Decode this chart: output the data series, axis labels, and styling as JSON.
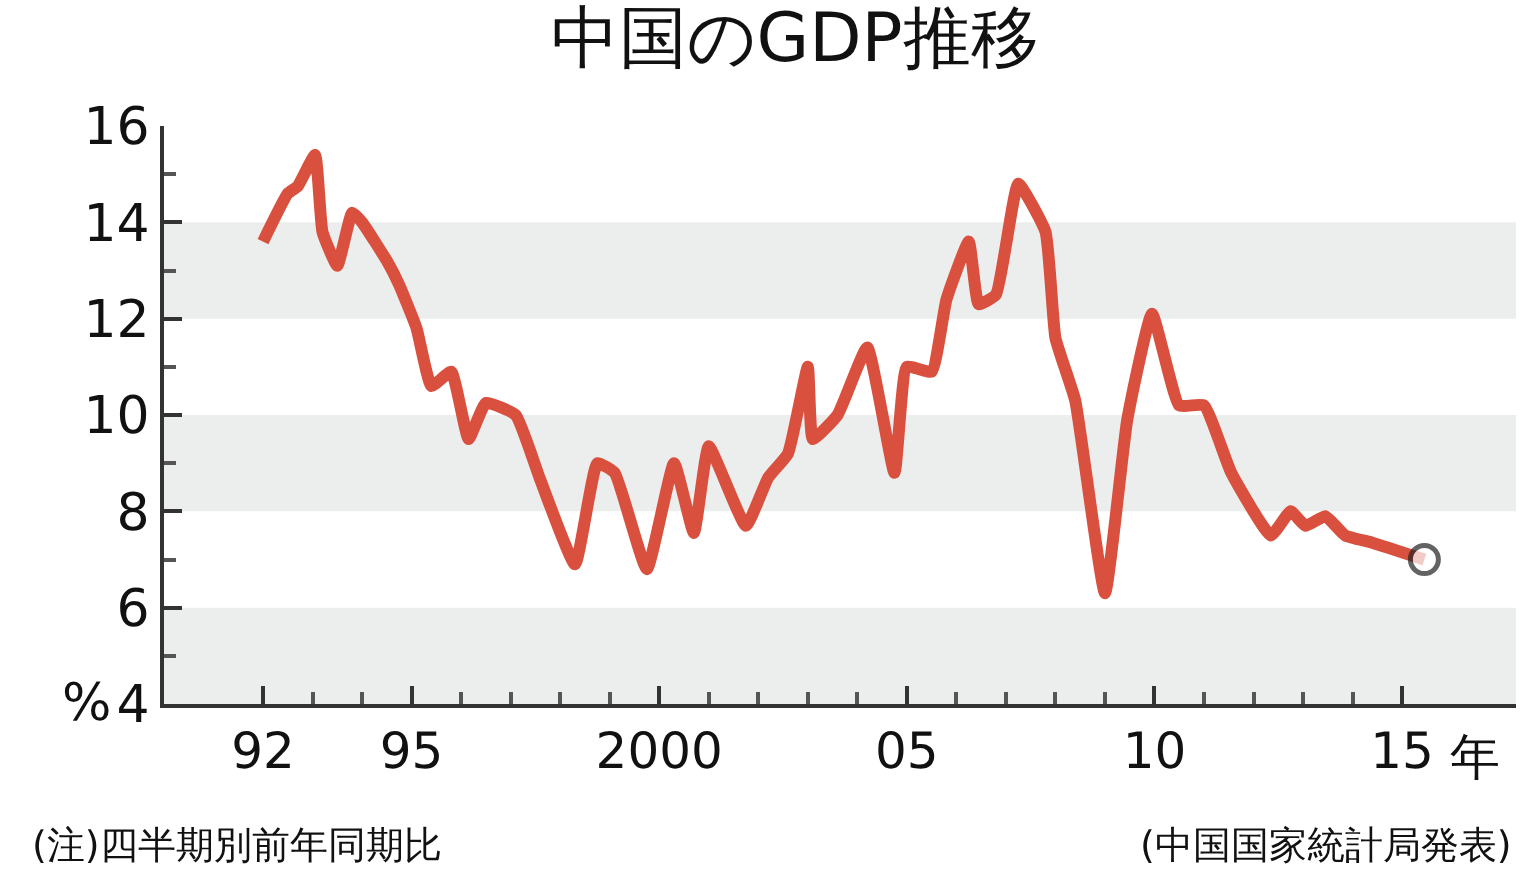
{
  "chart_data": {
    "type": "line",
    "title": "中国のGDP推移",
    "annotations": [
      "(注)四半期別前年同期比",
      "(中国国家統計局発表)"
    ],
    "x": [
      1992.0,
      1992.5,
      1992.7,
      1993.05,
      1993.2,
      1993.5,
      1993.8,
      1994.0,
      1994.5,
      1994.75,
      1995.1,
      1995.4,
      1995.8,
      1996.15,
      1996.5,
      1997.1,
      1997.6,
      1998.3,
      1998.75,
      1999.1,
      1999.75,
      2000.3,
      2000.7,
      2001.0,
      2001.75,
      2002.2,
      2002.6,
      2003.0,
      2003.1,
      2003.6,
      2004.2,
      2004.75,
      2005.0,
      2005.5,
      2005.8,
      2006.25,
      2006.45,
      2006.8,
      2007.25,
      2007.8,
      2008.0,
      2008.4,
      2009.0,
      2009.45,
      2009.95,
      2010.5,
      2011.0,
      2011.55,
      2012.35,
      2012.75,
      2013.05,
      2013.45,
      2013.85,
      2014.4,
      2015.45
    ],
    "series": [
      {
        "color": "#d9503f",
        "values": [
          13.6,
          14.6,
          14.75,
          15.4,
          13.8,
          13.1,
          14.2,
          14.0,
          13.2,
          12.7,
          11.8,
          10.6,
          10.9,
          9.5,
          10.25,
          10.0,
          8.65,
          6.9,
          9.0,
          8.8,
          6.8,
          9.0,
          7.55,
          9.35,
          7.7,
          8.7,
          9.2,
          11.0,
          9.5,
          10.0,
          11.4,
          8.8,
          11.0,
          10.9,
          12.4,
          13.6,
          12.3,
          12.5,
          14.8,
          13.8,
          11.6,
          10.3,
          6.3,
          9.9,
          12.1,
          10.2,
          10.2,
          8.8,
          7.5,
          8.0,
          7.7,
          7.9,
          7.5,
          7.35,
          7.0
        ]
      }
    ],
    "xlim": [
      1990,
      2017.3
    ],
    "xticks": [
      {
        "value": 1992,
        "label": "92"
      },
      {
        "value": 1993,
        "label": null
      },
      {
        "value": 1994,
        "label": null
      },
      {
        "value": 1995,
        "label": "95"
      },
      {
        "value": 1996,
        "label": null
      },
      {
        "value": 1997,
        "label": null
      },
      {
        "value": 1998,
        "label": null
      },
      {
        "value": 1999,
        "label": null
      },
      {
        "value": 2000,
        "label": "2000"
      },
      {
        "value": 2001,
        "label": null
      },
      {
        "value": 2002,
        "label": null
      },
      {
        "value": 2003,
        "label": null
      },
      {
        "value": 2004,
        "label": null
      },
      {
        "value": 2005,
        "label": "05"
      },
      {
        "value": 2006,
        "label": null
      },
      {
        "value": 2007,
        "label": null
      },
      {
        "value": 2008,
        "label": null
      },
      {
        "value": 2009,
        "label": null
      },
      {
        "value": 2010,
        "label": "10"
      },
      {
        "value": 2011,
        "label": null
      },
      {
        "value": 2012,
        "label": null
      },
      {
        "value": 2013,
        "label": null
      },
      {
        "value": 2014,
        "label": null
      },
      {
        "value": 2015,
        "label": "15"
      }
    ],
    "xlabel": "年",
    "ylabel": "%",
    "ylim": [
      4,
      16
    ],
    "yticks": [
      {
        "value": 4,
        "label": "4"
      },
      {
        "value": 5,
        "label": null
      },
      {
        "value": 6,
        "label": "6"
      },
      {
        "value": 7,
        "label": null
      },
      {
        "value": 8,
        "label": "8"
      },
      {
        "value": 9,
        "label": null
      },
      {
        "value": 10,
        "label": "10"
      },
      {
        "value": 11,
        "label": null
      },
      {
        "value": 12,
        "label": "12"
      },
      {
        "value": 13,
        "label": null
      },
      {
        "value": 14,
        "label": "14"
      },
      {
        "value": 15,
        "label": null
      },
      {
        "value": 16,
        "label": "16"
      }
    ],
    "bands": [
      {
        "axis": "y",
        "from": 4,
        "to": 6,
        "color": "#eceeee"
      },
      {
        "axis": "y",
        "from": 8,
        "to": 10,
        "color": "#eceeee"
      },
      {
        "axis": "y",
        "from": 12,
        "to": 14,
        "color": "#eceeee"
      }
    ],
    "line_style": "solid"
  }
}
